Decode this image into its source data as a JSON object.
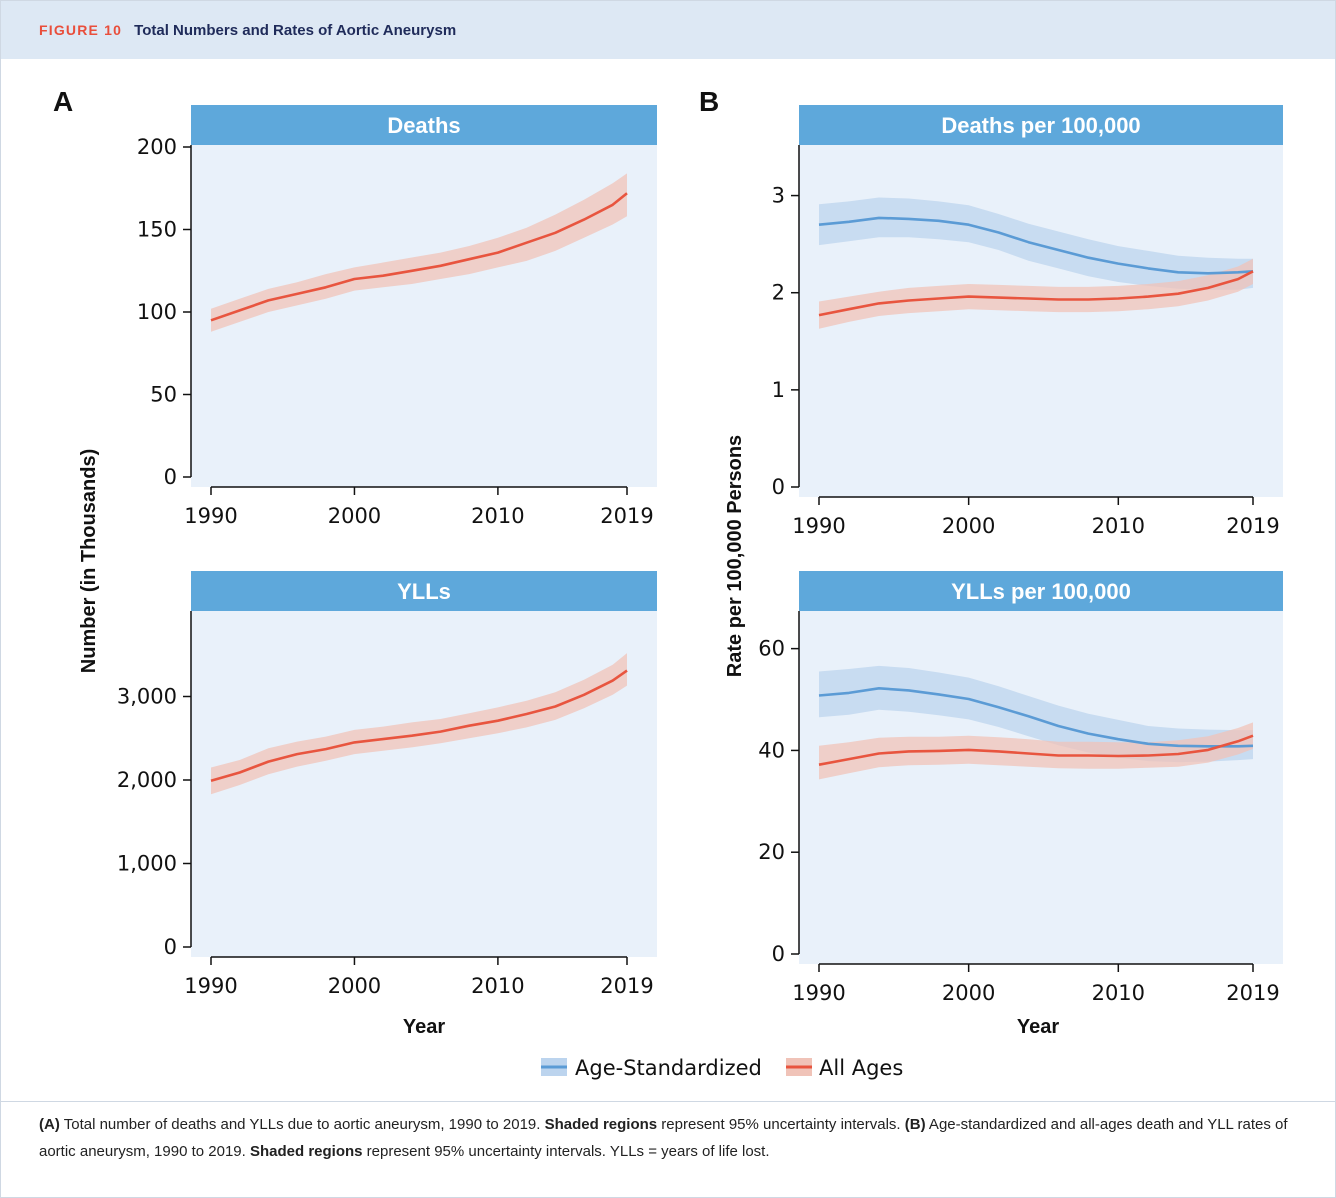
{
  "figure": {
    "label": "FIGURE 10",
    "title": "Total Numbers and Rates of Aortic Aneurysm",
    "panel_labels": [
      "A",
      "B"
    ],
    "axis_titles": {
      "a_ylabel": "Number (in Thousands)",
      "b_ylabel": "Rate per 100,000 Persons",
      "xlabel": "Year"
    },
    "legend": [
      {
        "label": "Age-Standardized",
        "color": "#5b9bd5"
      },
      {
        "label": "All Ages",
        "color": "#e8553f"
      }
    ],
    "caption": {
      "a_lead": "(A)",
      "a_text1": " Total number of deaths and YLLs due to aortic aneurysm, 1990 to 2019. ",
      "shaded": "Shaded regions",
      "a_text2": " represent 95% uncertainty intervals. ",
      "b_lead": "(B)",
      "b_text1": " Age-standardized and all-ages death and YLL rates of aortic aneurysm, 1990 to 2019. ",
      "b_text2": " represent 95% uncertainty intervals. YLLs = years of life lost."
    }
  },
  "colors": {
    "age_standardized_line": "#5b9bd5",
    "age_standardized_band": "#bcd4ee",
    "all_ages_line": "#e8553f",
    "all_ages_band": "#f0c3b8",
    "strip": "#5ea8db",
    "plot_background": "#e9f1fa"
  },
  "chart_data": [
    {
      "type": "line",
      "title": "Deaths",
      "panel": "A",
      "xlabel": "",
      "ylabel": "Number (in Thousands)",
      "xlim": [
        1990,
        2019
      ],
      "ylim": [
        0,
        200
      ],
      "xticks": [
        1990,
        2000,
        2010,
        2019
      ],
      "xtick_labels": [
        "1990",
        "2000",
        "2010",
        "2019"
      ],
      "yticks": [
        0,
        50,
        100,
        150,
        200
      ],
      "ytick_labels": [
        "0",
        "50",
        "100",
        "150",
        "200"
      ],
      "x": [
        1990,
        1992,
        1994,
        1996,
        1998,
        2000,
        2002,
        2004,
        2006,
        2008,
        2010,
        2012,
        2014,
        2016,
        2018,
        2019
      ],
      "series": [
        {
          "name": "All Ages",
          "color": "all_ages",
          "values": [
            95,
            101,
            107,
            111,
            115,
            120,
            122,
            125,
            128,
            132,
            136,
            142,
            148,
            156,
            165,
            172
          ],
          "lower": [
            88,
            94,
            100,
            104,
            108,
            113,
            115,
            117,
            120,
            123,
            127,
            131,
            137,
            145,
            153,
            158
          ],
          "upper": [
            102,
            108,
            114,
            118,
            123,
            127,
            130,
            133,
            136,
            140,
            145,
            151,
            159,
            168,
            178,
            184
          ]
        }
      ]
    },
    {
      "type": "line",
      "title": "Deaths per 100,000",
      "panel": "B",
      "xlabel": "",
      "ylabel": "Rate per 100,000 Persons",
      "xlim": [
        1990,
        2019
      ],
      "ylim": [
        0,
        3.5
      ],
      "xticks": [
        1990,
        2000,
        2010,
        2019
      ],
      "xtick_labels": [
        "1990",
        "2000",
        "2010",
        "2019"
      ],
      "yticks": [
        0,
        1,
        2,
        3
      ],
      "ytick_labels": [
        "0",
        "1",
        "2",
        "3"
      ],
      "x": [
        1990,
        1992,
        1994,
        1996,
        1998,
        2000,
        2002,
        2004,
        2006,
        2008,
        2010,
        2012,
        2014,
        2016,
        2018,
        2019
      ],
      "series": [
        {
          "name": "Age-Standardized",
          "color": "age_standardized",
          "values": [
            2.7,
            2.73,
            2.77,
            2.76,
            2.74,
            2.7,
            2.62,
            2.52,
            2.44,
            2.36,
            2.3,
            2.25,
            2.21,
            2.2,
            2.21,
            2.22
          ],
          "lower": [
            2.49,
            2.53,
            2.57,
            2.57,
            2.55,
            2.52,
            2.44,
            2.33,
            2.25,
            2.17,
            2.11,
            2.07,
            2.04,
            2.03,
            2.03,
            2.05
          ],
          "upper": [
            2.91,
            2.94,
            2.98,
            2.97,
            2.94,
            2.9,
            2.81,
            2.71,
            2.63,
            2.55,
            2.48,
            2.43,
            2.38,
            2.36,
            2.35,
            2.35
          ]
        },
        {
          "name": "All Ages",
          "color": "all_ages",
          "values": [
            1.77,
            1.83,
            1.89,
            1.92,
            1.94,
            1.96,
            1.95,
            1.94,
            1.93,
            1.93,
            1.94,
            1.96,
            1.99,
            2.05,
            2.14,
            2.22
          ],
          "lower": [
            1.63,
            1.7,
            1.76,
            1.79,
            1.81,
            1.83,
            1.82,
            1.81,
            1.8,
            1.8,
            1.81,
            1.83,
            1.86,
            1.92,
            2.01,
            2.09
          ],
          "upper": [
            1.91,
            1.96,
            2.01,
            2.05,
            2.07,
            2.09,
            2.08,
            2.07,
            2.06,
            2.06,
            2.07,
            2.09,
            2.12,
            2.18,
            2.27,
            2.35
          ]
        }
      ]
    },
    {
      "type": "line",
      "title": "YLLs",
      "panel": "A",
      "xlabel": "Year",
      "ylabel": "Number (in Thousands)",
      "xlim": [
        1990,
        2019
      ],
      "ylim": [
        0,
        4000
      ],
      "xticks": [
        1990,
        2000,
        2010,
        2019
      ],
      "xtick_labels": [
        "1990",
        "2000",
        "2010",
        "2019"
      ],
      "yticks": [
        0,
        1000,
        2000,
        3000
      ],
      "ytick_labels": [
        "0",
        "1,000",
        "2,000",
        "3,000"
      ],
      "x": [
        1990,
        1992,
        1994,
        1996,
        1998,
        2000,
        2002,
        2004,
        2006,
        2008,
        2010,
        2012,
        2014,
        2016,
        2018,
        2019
      ],
      "series": [
        {
          "name": "All Ages",
          "color": "all_ages",
          "values": [
            1990,
            2090,
            2220,
            2310,
            2370,
            2450,
            2490,
            2530,
            2580,
            2650,
            2710,
            2790,
            2880,
            3020,
            3190,
            3310
          ],
          "lower": [
            1830,
            1940,
            2070,
            2160,
            2230,
            2310,
            2350,
            2390,
            2440,
            2500,
            2560,
            2630,
            2720,
            2860,
            3020,
            3130
          ],
          "upper": [
            2150,
            2240,
            2380,
            2460,
            2520,
            2600,
            2640,
            2690,
            2730,
            2800,
            2870,
            2950,
            3050,
            3200,
            3380,
            3520
          ]
        }
      ]
    },
    {
      "type": "line",
      "title": "YLLs per 100,000",
      "panel": "B",
      "xlabel": "Year",
      "ylabel": "Rate per 100,000 Persons",
      "xlim": [
        1990,
        2019
      ],
      "ylim": [
        0,
        67
      ],
      "xticks": [
        1990,
        2000,
        2010,
        2019
      ],
      "xtick_labels": [
        "1990",
        "2000",
        "2010",
        "2019"
      ],
      "yticks": [
        0,
        20,
        40,
        60
      ],
      "ytick_labels": [
        "0",
        "20",
        "40",
        "60"
      ],
      "x": [
        1990,
        1992,
        1994,
        1996,
        1998,
        2000,
        2002,
        2004,
        2006,
        2008,
        2010,
        2012,
        2014,
        2016,
        2018,
        2019
      ],
      "series": [
        {
          "name": "Age-Standardized",
          "color": "age_standardized",
          "values": [
            50.8,
            51.3,
            52.2,
            51.8,
            51.0,
            50.1,
            48.5,
            46.7,
            44.8,
            43.3,
            42.2,
            41.3,
            40.9,
            40.8,
            40.8,
            40.9
          ],
          "lower": [
            46.5,
            47.0,
            48.0,
            47.6,
            46.9,
            46.1,
            44.6,
            42.8,
            41.0,
            39.6,
            38.6,
            37.9,
            37.7,
            37.8,
            38.1,
            38.3
          ],
          "upper": [
            55.5,
            56.0,
            56.6,
            56.2,
            55.3,
            54.3,
            52.6,
            50.7,
            48.8,
            47.2,
            46.0,
            44.8,
            44.3,
            44.1,
            44.0,
            44.0
          ]
        },
        {
          "name": "All Ages",
          "color": "all_ages",
          "values": [
            37.2,
            38.3,
            39.4,
            39.8,
            39.9,
            40.1,
            39.8,
            39.4,
            39.0,
            39.0,
            38.9,
            39.0,
            39.3,
            40.1,
            41.8,
            42.9
          ],
          "lower": [
            34.3,
            35.5,
            36.7,
            37.1,
            37.2,
            37.4,
            37.1,
            36.8,
            36.5,
            36.4,
            36.4,
            36.6,
            36.8,
            37.6,
            39.2,
            40.3
          ],
          "upper": [
            40.9,
            41.6,
            42.5,
            42.7,
            42.7,
            42.9,
            42.6,
            42.2,
            41.7,
            41.7,
            41.6,
            41.6,
            42.0,
            42.8,
            44.4,
            45.5
          ]
        }
      ]
    }
  ]
}
